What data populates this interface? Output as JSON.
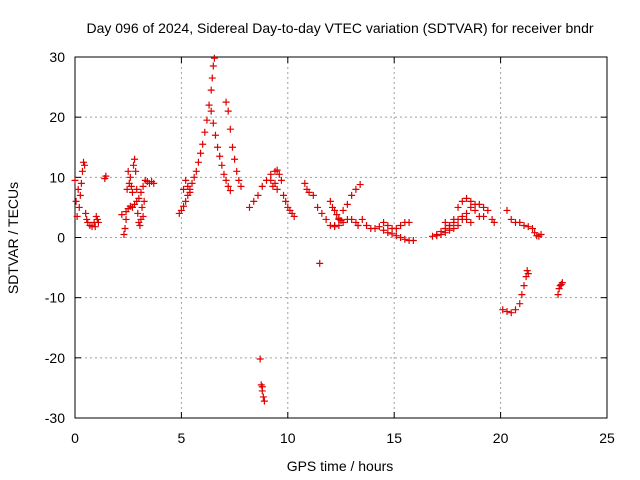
{
  "chart_data": {
    "type": "scatter",
    "title": "Day 096 of 2024, Sidereal Day-to-day VTEC variation (SDTVAR) for receiver bndr",
    "xlabel": "GPS time / hours",
    "ylabel": "SDTVAR / TECUs",
    "xlim": [
      0,
      25
    ],
    "ylim": [
      -30,
      30
    ],
    "x_ticks": [
      "0",
      "5",
      "10",
      "15",
      "20",
      "25"
    ],
    "y_ticks": [
      "-30",
      "-20",
      "-10",
      "0",
      "10",
      "20",
      "30"
    ],
    "grid": true,
    "marker": "plus",
    "color": "#e00000",
    "series": [
      {
        "points": [
          [
            0.0,
            9.5
          ],
          [
            0.05,
            6
          ],
          [
            0.1,
            3.5
          ],
          [
            0.15,
            8
          ],
          [
            0.2,
            5
          ],
          [
            0.25,
            7
          ],
          [
            0.3,
            9
          ],
          [
            0.35,
            11
          ],
          [
            0.4,
            12.5
          ],
          [
            0.45,
            12
          ],
          [
            0.5,
            4
          ],
          [
            0.55,
            3
          ],
          [
            0.6,
            2.5
          ],
          [
            0.7,
            2
          ],
          [
            0.8,
            1.8
          ],
          [
            0.9,
            2.5
          ],
          [
            1.0,
            3.5
          ],
          [
            1.1,
            2.5
          ],
          [
            0.95,
            1.8
          ],
          [
            1.05,
            3
          ],
          [
            1.4,
            9.8
          ],
          [
            1.45,
            10.2
          ],
          [
            2.2,
            3.8
          ],
          [
            2.4,
            4.3
          ],
          [
            2.5,
            4.8
          ],
          [
            2.6,
            5.2
          ],
          [
            2.7,
            5.0
          ],
          [
            2.8,
            5.5
          ],
          [
            2.9,
            6.0
          ],
          [
            3.0,
            6.5
          ],
          [
            3.1,
            7.5
          ],
          [
            3.2,
            8.5
          ],
          [
            3.3,
            9.5
          ],
          [
            3.4,
            9.3
          ],
          [
            3.5,
            9.0
          ],
          [
            3.6,
            9.3
          ],
          [
            3.7,
            9.0
          ],
          [
            2.3,
            0.5
          ],
          [
            2.35,
            1.5
          ],
          [
            2.4,
            3
          ],
          [
            2.45,
            8
          ],
          [
            2.5,
            11
          ],
          [
            2.55,
            9
          ],
          [
            2.6,
            10
          ],
          [
            2.65,
            8.5
          ],
          [
            2.7,
            7.5
          ],
          [
            2.75,
            12
          ],
          [
            2.8,
            13
          ],
          [
            2.85,
            11
          ],
          [
            2.9,
            8
          ],
          [
            2.95,
            4
          ],
          [
            3.0,
            2.5
          ],
          [
            3.05,
            2.0
          ],
          [
            3.1,
            3.0
          ],
          [
            3.15,
            5.0
          ],
          [
            3.2,
            3.5
          ],
          [
            3.25,
            6.0
          ],
          [
            4.9,
            4
          ],
          [
            5.0,
            4.5
          ],
          [
            5.1,
            5.2
          ],
          [
            5.2,
            6
          ],
          [
            5.3,
            7
          ],
          [
            5.4,
            8
          ],
          [
            5.5,
            9
          ],
          [
            5.6,
            10
          ],
          [
            5.7,
            11
          ],
          [
            5.8,
            12.5
          ],
          [
            5.9,
            14
          ],
          [
            6.0,
            15.5
          ],
          [
            6.1,
            17.5
          ],
          [
            6.2,
            19.5
          ],
          [
            6.3,
            22
          ],
          [
            6.4,
            24.5
          ],
          [
            6.45,
            26.5
          ],
          [
            6.5,
            28.5
          ],
          [
            6.55,
            29.8
          ],
          [
            6.4,
            21
          ],
          [
            6.5,
            19
          ],
          [
            6.6,
            17
          ],
          [
            6.7,
            15
          ],
          [
            6.8,
            13.5
          ],
          [
            6.9,
            12
          ],
          [
            7.0,
            10.5
          ],
          [
            7.1,
            9.5
          ],
          [
            7.2,
            8.5
          ],
          [
            7.3,
            7.8
          ],
          [
            7.1,
            22.5
          ],
          [
            7.2,
            21
          ],
          [
            7.3,
            18
          ],
          [
            7.4,
            15
          ],
          [
            7.5,
            13
          ],
          [
            7.6,
            11
          ],
          [
            7.7,
            9.5
          ],
          [
            7.8,
            8.5
          ],
          [
            5.4,
            7.5
          ],
          [
            5.3,
            8.5
          ],
          [
            5.2,
            9.5
          ],
          [
            5.1,
            8.0
          ],
          [
            8.2,
            5
          ],
          [
            8.4,
            6
          ],
          [
            8.6,
            7
          ],
          [
            8.8,
            8.5
          ],
          [
            9.0,
            9.5
          ],
          [
            9.2,
            10.5
          ],
          [
            9.4,
            11
          ],
          [
            9.5,
            11.2
          ],
          [
            9.6,
            10.5
          ],
          [
            9.7,
            9.5
          ],
          [
            9.8,
            7
          ],
          [
            9.9,
            6
          ],
          [
            10.0,
            5
          ],
          [
            10.1,
            4.5
          ],
          [
            10.2,
            4
          ],
          [
            10.3,
            3.5
          ],
          [
            9.2,
            9.5
          ],
          [
            9.3,
            8.5
          ],
          [
            9.4,
            9
          ],
          [
            9.5,
            8
          ],
          [
            8.7,
            -20.2
          ],
          [
            8.75,
            -24.5
          ],
          [
            8.8,
            -25.5
          ],
          [
            8.85,
            -26.5
          ],
          [
            8.9,
            -27.2
          ],
          [
            8.8,
            -24.8
          ],
          [
            10.8,
            9
          ],
          [
            10.9,
            8
          ],
          [
            11.0,
            7.5
          ],
          [
            11.2,
            7
          ],
          [
            11.4,
            5
          ],
          [
            11.6,
            4
          ],
          [
            11.8,
            3
          ],
          [
            12.0,
            2
          ],
          [
            12.2,
            1.8
          ],
          [
            12.4,
            2
          ],
          [
            12.6,
            2.5
          ],
          [
            12.8,
            3
          ],
          [
            13.0,
            3
          ],
          [
            13.2,
            2.5
          ],
          [
            13.3,
            2
          ],
          [
            11.5,
            -4.3
          ],
          [
            12.0,
            6
          ],
          [
            12.1,
            5
          ],
          [
            12.2,
            4.5
          ],
          [
            12.3,
            3.8
          ],
          [
            12.4,
            3.2
          ],
          [
            12.5,
            2.8
          ],
          [
            12.2,
            2
          ],
          [
            12.4,
            3
          ],
          [
            12.6,
            4.5
          ],
          [
            12.8,
            5.5
          ],
          [
            13.0,
            7
          ],
          [
            13.2,
            8
          ],
          [
            13.4,
            8.8
          ],
          [
            13.5,
            3
          ],
          [
            13.7,
            2
          ],
          [
            13.9,
            1.5
          ],
          [
            14.1,
            1.5
          ],
          [
            14.3,
            1.8
          ],
          [
            14.5,
            2.5
          ],
          [
            14.7,
            2
          ],
          [
            14.9,
            1.5
          ],
          [
            15.1,
            1.5
          ],
          [
            15.3,
            2
          ],
          [
            15.5,
            2.5
          ],
          [
            15.7,
            2.5
          ],
          [
            14.5,
            1.2
          ],
          [
            14.7,
            0.8
          ],
          [
            14.9,
            0.6
          ],
          [
            15.1,
            0.3
          ],
          [
            15.3,
            0
          ],
          [
            15.5,
            -0.3
          ],
          [
            15.7,
            -0.5
          ],
          [
            15.9,
            -0.5
          ],
          [
            16.8,
            0.2
          ],
          [
            17.0,
            0.3
          ],
          [
            17.2,
            0.5
          ],
          [
            17.4,
            0.8
          ],
          [
            17.6,
            1.2
          ],
          [
            17.8,
            1.5
          ],
          [
            18.0,
            2
          ],
          [
            18.2,
            3
          ],
          [
            18.4,
            4
          ],
          [
            18.6,
            5
          ],
          [
            18.8,
            5.5
          ],
          [
            19.0,
            5.5
          ],
          [
            19.2,
            5
          ],
          [
            19.4,
            4.5
          ],
          [
            19.6,
            3
          ],
          [
            19.7,
            2.5
          ],
          [
            17.4,
            2.5
          ],
          [
            17.6,
            2
          ],
          [
            17.8,
            3
          ],
          [
            18.0,
            5
          ],
          [
            18.2,
            6
          ],
          [
            18.4,
            6.5
          ],
          [
            18.6,
            6
          ],
          [
            18.8,
            4.5
          ],
          [
            19.0,
            3.5
          ],
          [
            19.2,
            3.5
          ],
          [
            17.0,
            0.5
          ],
          [
            17.2,
            1
          ],
          [
            17.4,
            1.5
          ],
          [
            17.6,
            2
          ],
          [
            17.8,
            2.5
          ],
          [
            18.0,
            3
          ],
          [
            18.2,
            3.5
          ],
          [
            18.4,
            3
          ],
          [
            18.6,
            2.5
          ],
          [
            20.1,
            -12
          ],
          [
            20.3,
            -12.3
          ],
          [
            20.5,
            -12.5
          ],
          [
            20.7,
            -12
          ],
          [
            20.9,
            -11
          ],
          [
            21.0,
            -9.5
          ],
          [
            21.1,
            -8
          ],
          [
            21.2,
            -6.5
          ],
          [
            21.25,
            -5.5
          ],
          [
            21.3,
            -6
          ],
          [
            20.3,
            4.5
          ],
          [
            20.5,
            3
          ],
          [
            20.7,
            2.5
          ],
          [
            20.9,
            2.5
          ],
          [
            21.1,
            2
          ],
          [
            21.3,
            1.8
          ],
          [
            21.5,
            1.5
          ],
          [
            21.6,
            0.8
          ],
          [
            21.7,
            0.3
          ],
          [
            21.8,
            0.2
          ],
          [
            21.9,
            0.5
          ],
          [
            22.7,
            -9.5
          ],
          [
            22.75,
            -8.5
          ],
          [
            22.8,
            -8
          ],
          [
            22.85,
            -7.8
          ],
          [
            22.9,
            -7.5
          ]
        ]
      }
    ]
  }
}
